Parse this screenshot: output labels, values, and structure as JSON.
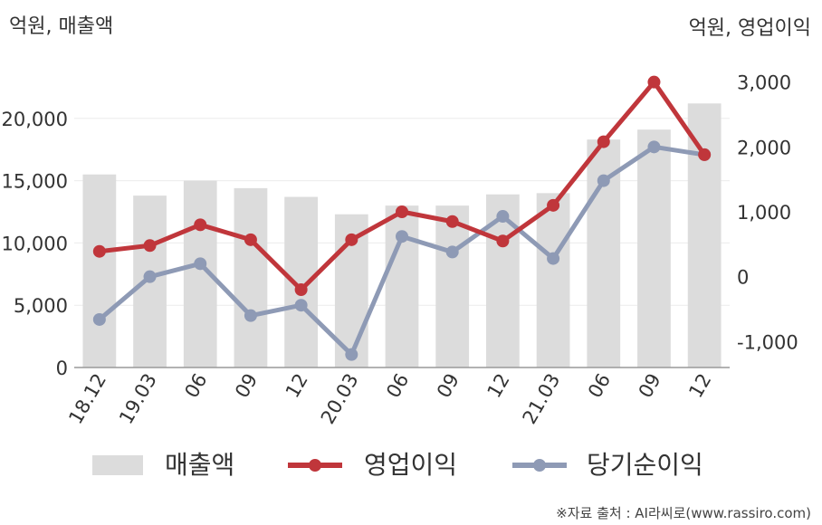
{
  "chart_data": {
    "type": "bar+line",
    "categories": [
      "18.12",
      "19.03",
      "06",
      "09",
      "12",
      "20.03",
      "06",
      "09",
      "12",
      "21.03",
      "06",
      "09",
      "12"
    ],
    "left_axis": {
      "label": "억원, 매출액",
      "ylim": [
        0,
        25000
      ],
      "ticks": [
        0,
        5000,
        10000,
        15000,
        20000
      ],
      "tick_labels": [
        "0",
        "5,000",
        "10,000",
        "15,000",
        "20,000"
      ]
    },
    "right_axis": {
      "label": "억원, 영업이익",
      "ylim": [
        -1400,
        3400
      ],
      "ticks": [
        -1000,
        0,
        1000,
        2000,
        3000
      ],
      "tick_labels": [
        "-1,000",
        "0",
        "1,000",
        "2,000",
        "3,000"
      ]
    },
    "series": [
      {
        "name": "매출액",
        "type": "bar",
        "axis": "left",
        "color": "#dcdcdc",
        "values": [
          15500,
          13800,
          15000,
          14400,
          13700,
          12300,
          13000,
          13000,
          13900,
          14000,
          18300,
          19100,
          21200
        ]
      },
      {
        "name": "영업이익",
        "type": "line",
        "axis": "right",
        "color": "#c0363b",
        "values": [
          390,
          480,
          800,
          570,
          -200,
          570,
          1000,
          850,
          550,
          1100,
          2080,
          3000,
          1880
        ]
      },
      {
        "name": "당기순이익",
        "type": "line",
        "axis": "right",
        "color": "#8e9ab5",
        "values": [
          -660,
          0,
          200,
          -600,
          -440,
          -1200,
          620,
          380,
          930,
          280,
          1480,
          2000,
          1880
        ]
      }
    ],
    "grid": true,
    "legend": "bottom"
  },
  "source_note": "※자료 출처 : AI라씨로(www.rassiro.com)"
}
